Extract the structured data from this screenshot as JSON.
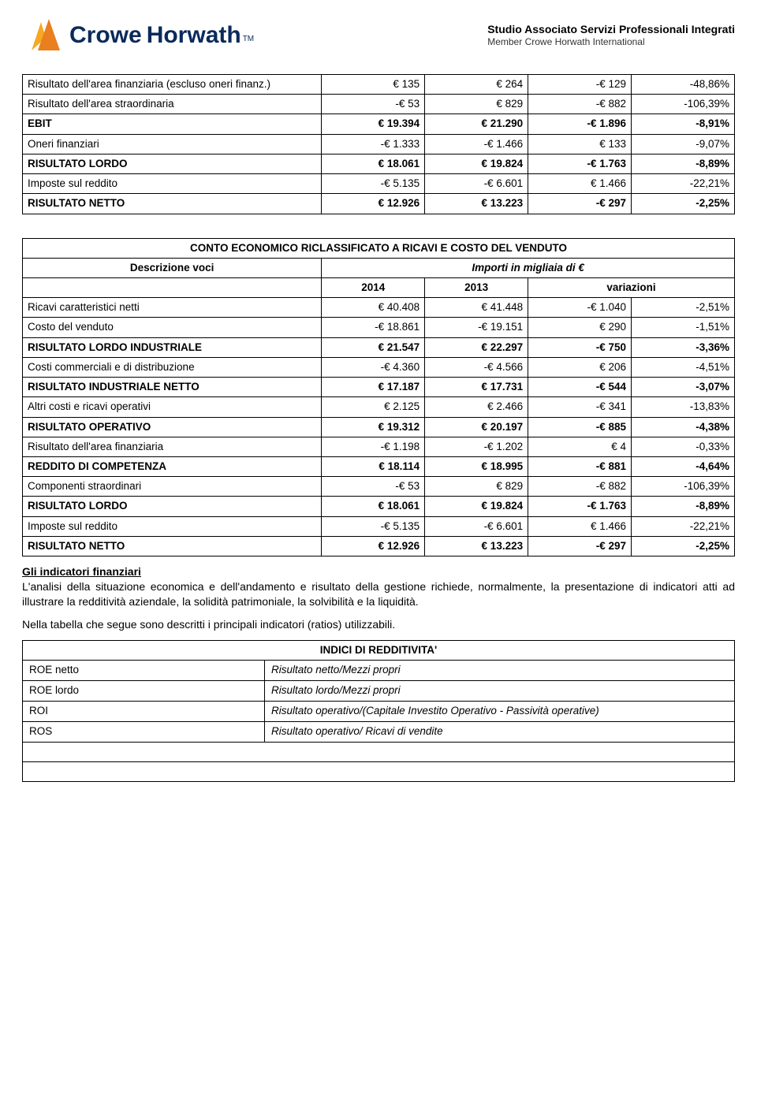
{
  "header": {
    "brand_crowe": "Crowe",
    "brand_horwath": "Horwath",
    "tm": "TM",
    "subtitle_bold": "Studio Associato Servizi Professionali Integrati",
    "subtitle_small": "Member Crowe Horwath International",
    "logo_color_1": "#f7a823",
    "logo_color_2": "#e97f1e",
    "brand_color": "#0b2a5b"
  },
  "table1": {
    "rows": [
      {
        "label": "Risultato dell'area finanziaria (escluso oneri finanz.)",
        "c1": "€ 135",
        "c2": "€ 264",
        "c3": "-€ 129",
        "c4": "-48,86%",
        "bold": false
      },
      {
        "label": "Risultato dell'area straordinaria",
        "c1": "-€ 53",
        "c2": "€ 829",
        "c3": "-€ 882",
        "c4": "-106,39%",
        "bold": false
      },
      {
        "label": "EBIT",
        "c1": "€ 19.394",
        "c2": "€ 21.290",
        "c3": "-€ 1.896",
        "c4": "-8,91%",
        "bold": true
      },
      {
        "label": "Oneri finanziari",
        "c1": "-€ 1.333",
        "c2": "-€ 1.466",
        "c3": "€ 133",
        "c4": "-9,07%",
        "bold": false
      },
      {
        "label": "RISULTATO LORDO",
        "c1": "€ 18.061",
        "c2": "€ 19.824",
        "c3": "-€ 1.763",
        "c4": "-8,89%",
        "bold": true
      },
      {
        "label": "Imposte sul reddito",
        "c1": "-€ 5.135",
        "c2": "-€ 6.601",
        "c3": "€ 1.466",
        "c4": "-22,21%",
        "bold": false
      },
      {
        "label": "RISULTATO NETTO",
        "c1": "€ 12.926",
        "c2": "€ 13.223",
        "c3": "-€ 297",
        "c4": "-2,25%",
        "bold": true
      }
    ]
  },
  "table2": {
    "title": "CONTO ECONOMICO RICLASSIFICATO A RICAVI E COSTO DEL VENDUTO",
    "sub_left": "Descrizione voci",
    "sub_right": "Importi in migliaia di €",
    "col_year1": "2014",
    "col_year2": "2013",
    "col_var": "variazioni",
    "rows": [
      {
        "label": "Ricavi caratteristici netti",
        "c1": "€ 40.408",
        "c2": "€ 41.448",
        "c3": "-€ 1.040",
        "c4": "-2,51%",
        "bold": false
      },
      {
        "label": "Costo del venduto",
        "c1": "-€ 18.861",
        "c2": "-€ 19.151",
        "c3": "€ 290",
        "c4": "-1,51%",
        "bold": false
      },
      {
        "label": "RISULTATO LORDO INDUSTRIALE",
        "c1": "€ 21.547",
        "c2": "€ 22.297",
        "c3": "-€ 750",
        "c4": "-3,36%",
        "bold": true
      },
      {
        "label": "Costi commerciali e di distribuzione",
        "c1": "-€ 4.360",
        "c2": "-€ 4.566",
        "c3": "€ 206",
        "c4": "-4,51%",
        "bold": false
      },
      {
        "label": "RISULTATO INDUSTRIALE NETTO",
        "c1": "€ 17.187",
        "c2": "€ 17.731",
        "c3": "-€ 544",
        "c4": "-3,07%",
        "bold": true
      },
      {
        "label": "Altri costi  e ricavi operativi",
        "c1": "€ 2.125",
        "c2": "€ 2.466",
        "c3": "-€ 341",
        "c4": "-13,83%",
        "bold": false
      },
      {
        "label": "RISULTATO OPERATIVO",
        "c1": "€ 19.312",
        "c2": "€ 20.197",
        "c3": "-€ 885",
        "c4": "-4,38%",
        "bold": true
      },
      {
        "label": "Risultato dell'area finanziaria",
        "c1": "-€ 1.198",
        "c2": "-€ 1.202",
        "c3": "€ 4",
        "c4": "-0,33%",
        "bold": false
      },
      {
        "label": "REDDITO DI COMPETENZA",
        "c1": "€ 18.114",
        "c2": "€ 18.995",
        "c3": "-€ 881",
        "c4": "-4,64%",
        "bold": true
      },
      {
        "label": "Componenti straordinari",
        "c1": "-€ 53",
        "c2": "€ 829",
        "c3": "-€ 882",
        "c4": "-106,39%",
        "bold": false
      },
      {
        "label": "RISULTATO LORDO",
        "c1": "€ 18.061",
        "c2": "€ 19.824",
        "c3": "-€ 1.763",
        "c4": "-8,89%",
        "bold": true
      },
      {
        "label": "Imposte sul reddito",
        "c1": "-€ 5.135",
        "c2": "-€ 6.601",
        "c3": "€ 1.466",
        "c4": "-22,21%",
        "bold": false
      },
      {
        "label": "RISULTATO NETTO",
        "c1": "€ 12.926",
        "c2": "€ 13.223",
        "c3": "-€ 297",
        "c4": "-2,25%",
        "bold": true
      }
    ]
  },
  "prose": {
    "h1": "Gli indicatori finanziari",
    "p1": "L'analisi della situazione economica e dell'andamento e risultato della gestione richiede, normalmente, la presentazione di indicatori atti ad illustrare la redditività aziendale, la solidità patrimoniale, la solvibilità e la liquidità.",
    "p2": "Nella tabella che segue sono descritti i principali indicatori (ratios) utilizzabili."
  },
  "table3": {
    "title": "INDICI DI REDDITIVITA'",
    "rows": [
      {
        "k": "ROE netto",
        "v": "Risultato netto/Mezzi propri"
      },
      {
        "k": "ROE lordo",
        "v": "Risultato lordo/Mezzi propri"
      },
      {
        "k": "ROI",
        "v": "Risultato operativo/(Capitale Investito Operativo  - Passività operative)"
      },
      {
        "k": "ROS",
        "v": "Risultato operativo/ Ricavi di vendite"
      }
    ]
  }
}
